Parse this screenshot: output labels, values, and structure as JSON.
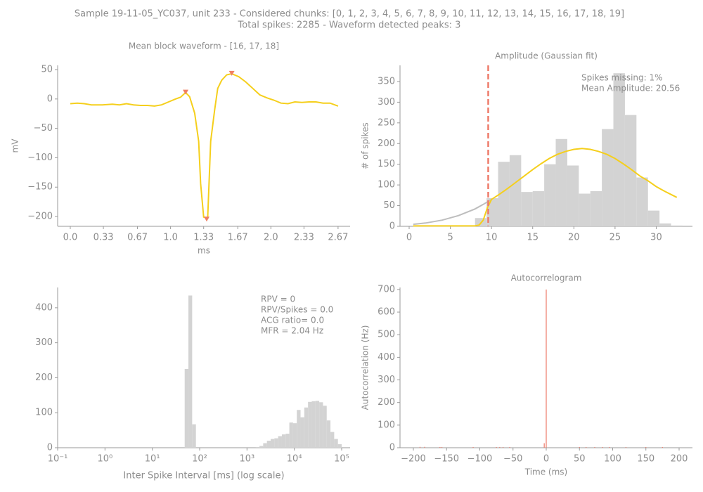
{
  "figure": {
    "title": "Sample 19-11-05_YC037, unit 233 - Considered chunks: [0, 1, 2, 3, 4, 5, 6, 7, 8, 9, 10, 11, 12, 13, 14, 15, 16, 17, 18, 19]",
    "subtitle": "Total spikes: 2285 - Waveform detected peaks: 3"
  },
  "chart_data": [
    {
      "type": "line",
      "title": "Mean block waveform - [16, 17, 18]",
      "xlabel": "ms",
      "ylabel": "mV",
      "color": "#f5cf1c",
      "x": [
        0,
        0.07,
        0.14,
        0.21,
        0.32,
        0.42,
        0.49,
        0.56,
        0.63,
        0.7,
        0.77,
        0.84,
        0.91,
        0.98,
        1.05,
        1.1,
        1.15,
        1.19,
        1.24,
        1.28,
        1.3,
        1.33,
        1.37,
        1.4,
        1.44,
        1.47,
        1.51,
        1.56,
        1.61,
        1.68,
        1.75,
        1.82,
        1.89,
        1.96,
        2.03,
        2.1,
        2.17,
        2.24,
        2.31,
        2.38,
        2.45,
        2.52,
        2.59,
        2.67
      ],
      "values": [
        -8,
        -7,
        -8,
        -10,
        -10,
        -9,
        -10,
        -8,
        -10,
        -11,
        -11,
        -12,
        -10,
        -5,
        0,
        3,
        11,
        4,
        -24,
        -72,
        -144,
        -201,
        -203,
        -72,
        -18,
        18,
        32,
        41,
        43,
        38,
        29,
        18,
        7,
        2,
        -2,
        -7,
        -8,
        -5,
        -6,
        -5,
        -5,
        -7,
        -7,
        -12
      ],
      "markers": {
        "x": [
          1.15,
          1.36,
          1.61
        ],
        "values": [
          11,
          -205,
          43
        ],
        "color": "#f07f62"
      },
      "xlim": [
        -0.126,
        2.79
      ],
      "ylim": [
        -216.7,
        57.2
      ],
      "xticks": [
        {
          "value": 0,
          "label": "0.0"
        },
        0.33,
        0.67,
        {
          "value": 1,
          "label": "1.0"
        },
        1.33,
        1.67,
        {
          "value": 2,
          "label": "2.0"
        },
        2.33,
        2.67
      ],
      "yticks": [
        {
          "value": -200,
          "label": "−200"
        },
        {
          "value": -150,
          "label": "−150"
        },
        {
          "value": -100,
          "label": "−100"
        },
        {
          "value": -50,
          "label": "−50"
        },
        0,
        50
      ]
    },
    {
      "type": "histogram",
      "title": "Amplitude (Gaussian fit)",
      "ylabel": "# of spikes",
      "color": "#d3d3d3",
      "bins": [
        8.0,
        9.4,
        10.8,
        12.2,
        13.6,
        15.0,
        16.4,
        17.8,
        19.2,
        20.6,
        22.0,
        23.4,
        24.8,
        26.2,
        27.6,
        29.0,
        30.4,
        31.8,
        33.2
      ],
      "values": [
        20,
        68,
        156,
        172,
        83,
        85,
        150,
        211,
        147,
        79,
        85,
        235,
        370,
        269,
        118,
        38,
        7,
        2
      ],
      "lines": [
        {
          "color": "#bdbdbd",
          "x": [
            0.5,
            2,
            4,
            6,
            8,
            9,
            10
          ],
          "values": [
            5,
            8,
            15,
            26,
            42,
            53,
            65
          ]
        },
        {
          "color": "#f5cf1c",
          "x": [
            0.5,
            2,
            4,
            6,
            8,
            8.5,
            9,
            9.5,
            10,
            11,
            12,
            13,
            14,
            15,
            16,
            17,
            18,
            19,
            20,
            21,
            22,
            23,
            24,
            25,
            26,
            27,
            28,
            29,
            30,
            31,
            32.5
          ],
          "values": [
            1,
            1,
            1,
            1,
            1,
            3,
            15,
            45,
            65,
            78,
            92,
            107,
            122,
            137,
            151,
            164,
            174,
            181,
            186,
            188,
            186,
            181,
            174,
            164,
            151,
            137,
            122,
            110,
            96,
            85,
            70
          ]
        }
      ],
      "vline": {
        "x": 9.6,
        "color": "#ee7b6a"
      },
      "annotations": [
        "Spikes missing: 1%",
        "Mean Amplitude: 20.56"
      ],
      "xlim": [
        -1.11,
        34.4
      ],
      "ylim": [
        0,
        389
      ],
      "xticks": [
        0,
        5,
        10,
        15,
        20,
        25,
        30
      ],
      "yticks": [
        0,
        50,
        100,
        150,
        200,
        250,
        300,
        350
      ]
    },
    {
      "type": "histogram",
      "xlabel": "Inter Spike Interval [ms] (log scale)",
      "xscale": "log",
      "color": "#d3d3d3",
      "bins": [
        48.3,
        57.9,
        69.5,
        83.4,
        100,
        120,
        144,
        173,
        207,
        248,
        298,
        357,
        428,
        514,
        616,
        739,
        886,
        1062,
        1274,
        1528,
        1833,
        2198,
        2636,
        3162,
        3793,
        4549,
        5456,
        6544,
        7848,
        9413,
        11290,
        13540,
        16240,
        19480,
        23360,
        28020,
        33600,
        40300,
        48330,
        57970,
        69520,
        83380,
        100000
      ],
      "values": [
        225,
        435,
        67,
        0,
        0,
        0,
        0,
        0,
        0,
        0,
        0,
        0,
        0,
        0,
        0,
        0,
        0,
        0,
        0,
        2,
        5,
        13,
        20,
        25,
        27,
        33,
        38,
        40,
        72,
        70,
        108,
        87,
        115,
        131,
        133,
        134,
        130,
        120,
        78,
        45,
        25,
        10
      ],
      "annotations": [
        "RPV = 0",
        "RPV/Spikes = 0.0",
        "ACG ratio= 0.0",
        "MFR = 2.04 Hz"
      ],
      "xlim": [
        0.1,
        150700
      ],
      "ylim": [
        0,
        458
      ],
      "xticks": [
        {
          "value": 0.1,
          "label": "10⁻¹"
        },
        {
          "value": 1,
          "label": "10⁰"
        },
        {
          "value": 10,
          "label": "10¹"
        },
        {
          "value": 100,
          "label": "10²"
        },
        {
          "value": 1000,
          "label": "10³"
        },
        {
          "value": 10000,
          "label": "10⁴"
        },
        {
          "value": 100000,
          "label": "10⁵"
        }
      ],
      "yticks": [
        0,
        100,
        200,
        300,
        400
      ]
    },
    {
      "type": "bar",
      "title": "Autocorrelogram",
      "xlabel": "Time (ms)",
      "ylabel": "Autocorrelation (Hz)",
      "color": "#ee7b6a",
      "x": [
        -190,
        -183,
        -160,
        -157,
        -110,
        -75,
        -70,
        -65,
        -55,
        -3,
        0,
        50,
        60,
        73,
        85,
        95,
        120,
        150,
        175
      ],
      "values": [
        4,
        4,
        3,
        3,
        3,
        3,
        3,
        3,
        3,
        20,
        700,
        3,
        3,
        3,
        3,
        3,
        3,
        3,
        3
      ],
      "xlim": [
        -220.1,
        220.1
      ],
      "ylim": [
        0,
        709
      ],
      "xticks": [
        {
          "value": -200,
          "label": "−200"
        },
        {
          "value": -150,
          "label": "−150"
        },
        {
          "value": -100,
          "label": "−100"
        },
        {
          "value": -50,
          "label": "−50"
        },
        0,
        50,
        100,
        150,
        200
      ],
      "yticks": [
        0,
        100,
        200,
        300,
        400,
        500,
        600,
        700
      ]
    }
  ]
}
